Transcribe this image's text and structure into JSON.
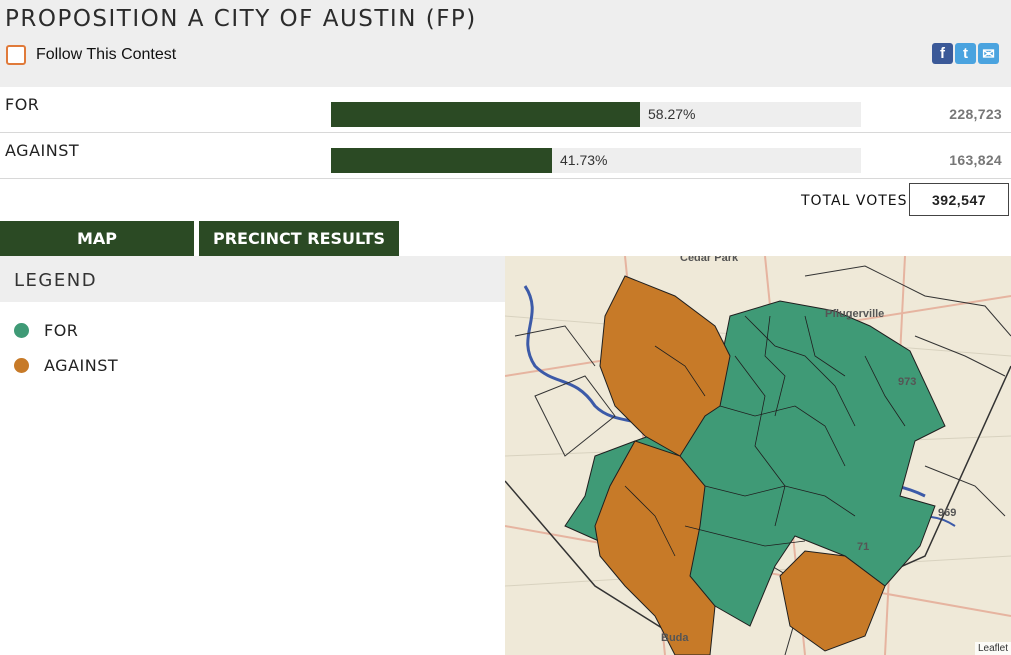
{
  "contest": {
    "title": "PROPOSITION A CITY OF AUSTIN (FP)",
    "follow_label": "Follow This Contest"
  },
  "social": {
    "facebook": "f",
    "twitter": "t",
    "email": "✉"
  },
  "results": [
    {
      "name": "FOR",
      "percent_label": "58.27%",
      "percent": 58.27,
      "votes": "228,723"
    },
    {
      "name": "AGAINST",
      "percent_label": "41.73%",
      "percent": 41.73,
      "votes": "163,824"
    }
  ],
  "total": {
    "label": "TOTAL VOTES",
    "value": "392,547"
  },
  "tabs": {
    "map": "MAP",
    "precinct": "PRECINCT RESULTS"
  },
  "legend": {
    "title": "LEGEND",
    "items": [
      {
        "label": "FOR",
        "color": "#3f9a76"
      },
      {
        "label": "AGAINST",
        "color": "#c77a28"
      }
    ]
  },
  "map": {
    "labels": {
      "pflugerville": "Pflugerville",
      "buda": "Buda",
      "cedar_park": "Cedar Park",
      "hwy": "973",
      "hwy2": "969",
      "hwy3": "71"
    },
    "attribution": "Leaflet"
  },
  "colors": {
    "accent": "#2b4a24",
    "for": "#3f9a76",
    "against": "#c77a28",
    "follow_border": "#e07a3a"
  }
}
